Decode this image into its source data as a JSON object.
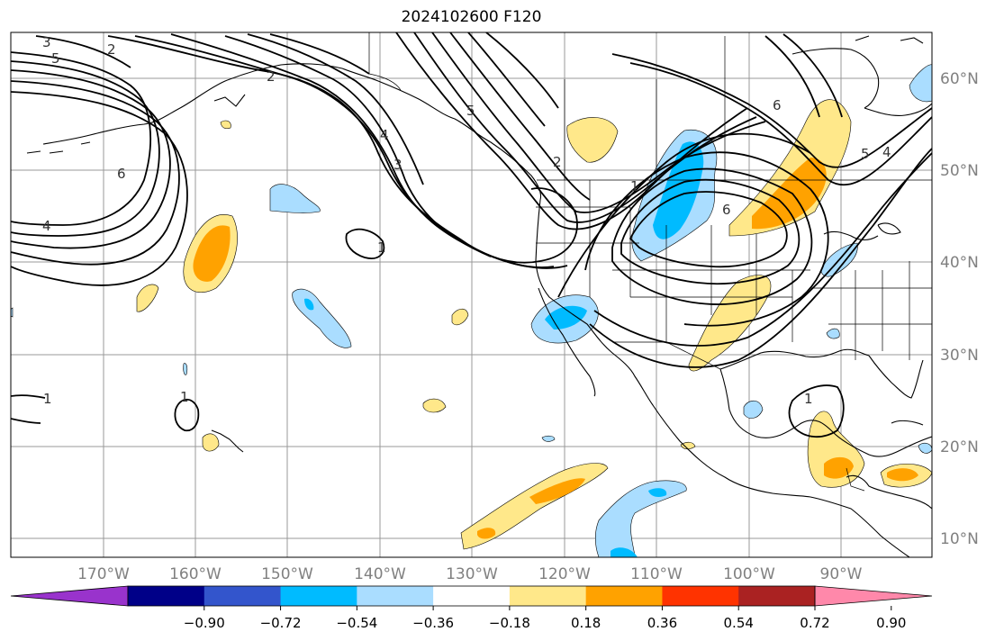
{
  "title": "2024102600 F120",
  "latitude_labels": [
    "60°N",
    "50°N",
    "40°N",
    "30°N",
    "20°N",
    "10°N"
  ],
  "longitude_labels": [
    "170°W",
    "160°W",
    "150°W",
    "140°W",
    "130°W",
    "120°W",
    "110°W",
    "100°W",
    "90°W"
  ],
  "colorbar": {
    "ticks": [
      "−0.90",
      "−0.72",
      "−0.54",
      "−0.36",
      "−0.18",
      "0.18",
      "0.36",
      "0.54",
      "0.72",
      "0.90"
    ],
    "colors": [
      "#9933cc",
      "#000088",
      "#3355cc",
      "#00bbff",
      "#aaddff",
      "#ffffff",
      "#ffe88a",
      "#ffa200",
      "#ff3300",
      "#aa2222",
      "#ff88aa"
    ]
  },
  "contour_labels": [
    "3",
    "5",
    "2",
    "6",
    "4",
    "2",
    "1",
    "4",
    "3",
    "5",
    "2",
    "1",
    "6",
    "6",
    "5",
    "4",
    "1",
    "1",
    "1"
  ],
  "colors": {
    "contour": "#000000",
    "grid": "#999999",
    "coast": "#000000"
  }
}
